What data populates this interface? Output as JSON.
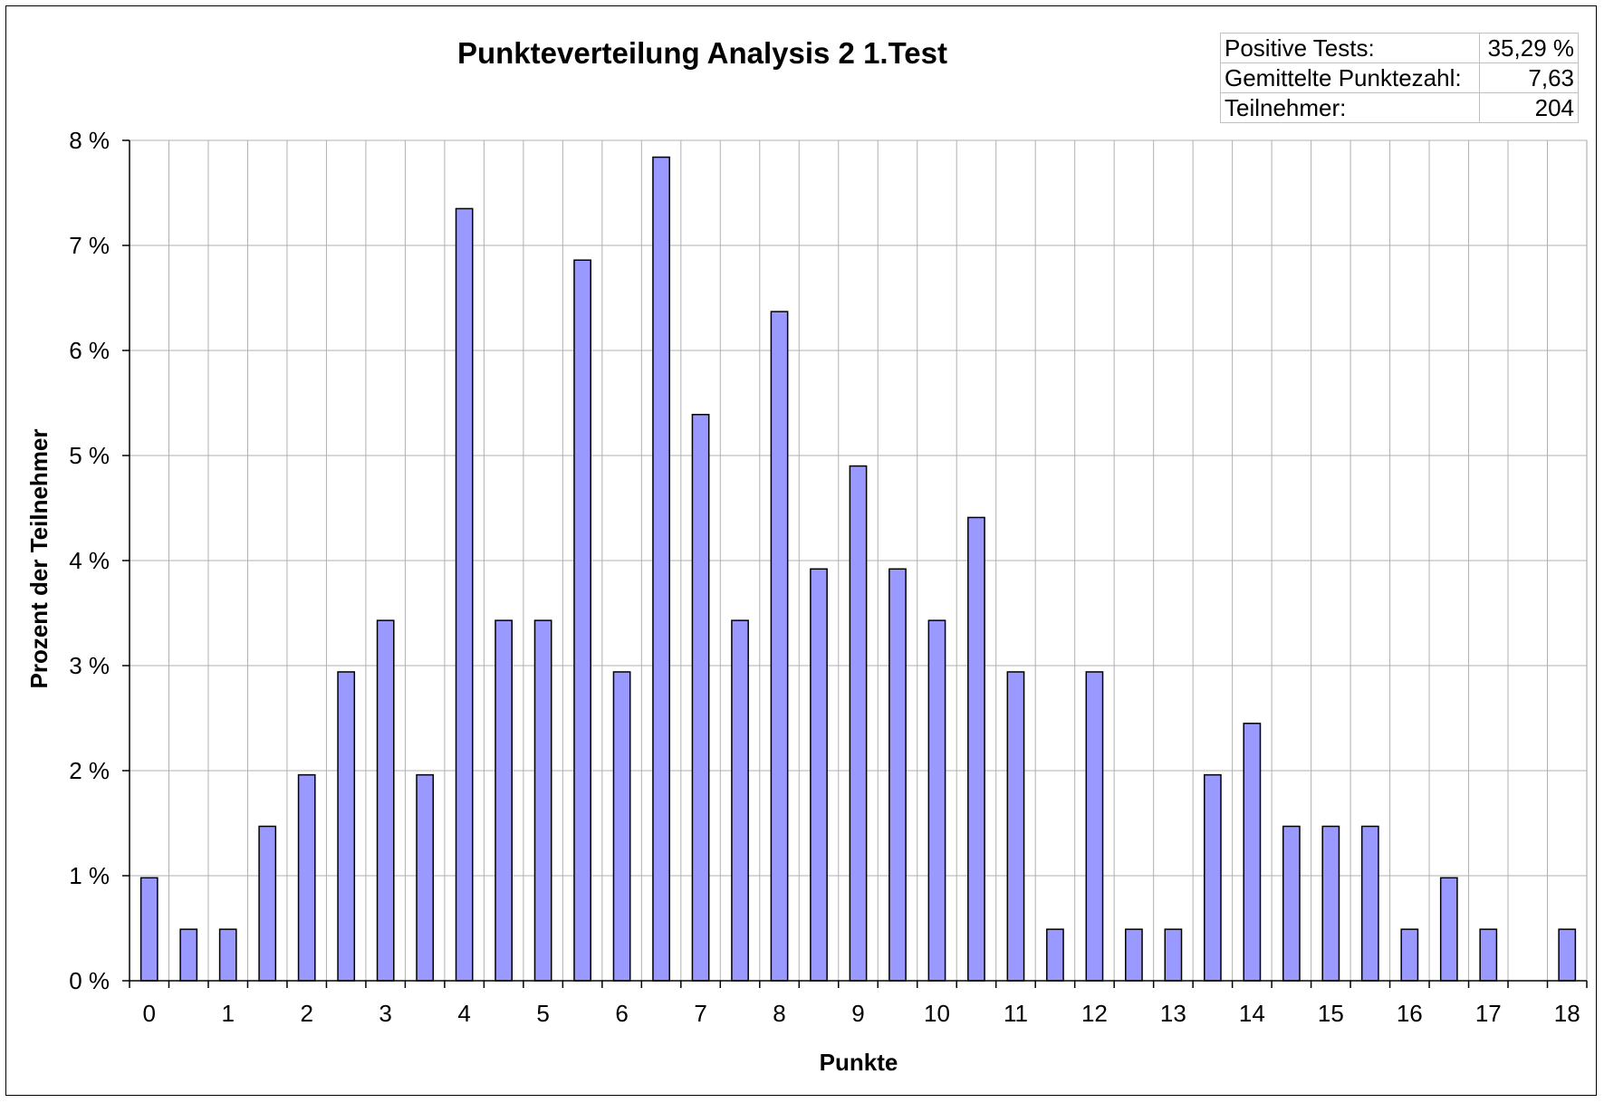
{
  "chart_data": {
    "type": "bar",
    "title": "Punkteverteilung Analysis 2 1.Test",
    "xlabel": "Punkte",
    "ylabel": "Prozent der Teilnehmer",
    "x_tick_labels": [
      "0",
      "1",
      "2",
      "3",
      "4",
      "5",
      "6",
      "7",
      "8",
      "9",
      "10",
      "11",
      "12",
      "13",
      "14",
      "15",
      "16",
      "17",
      "18"
    ],
    "y_tick_labels": [
      "0 %",
      "1 %",
      "2 %",
      "3 %",
      "4 %",
      "5 %",
      "6 %",
      "7 %",
      "8 %"
    ],
    "ylim": [
      0,
      8
    ],
    "xlim": [
      0,
      18
    ],
    "grid": true,
    "bar_color": "#9999ff",
    "series": [
      {
        "x": [
          0,
          0.5,
          1,
          1.5,
          2,
          2.5,
          3,
          3.5,
          4,
          4.5,
          5,
          5.5,
          6,
          6.5,
          7,
          7.5,
          8,
          8.5,
          9,
          9.5,
          10,
          10.5,
          11,
          11.5,
          12,
          12.5,
          13,
          13.5,
          14,
          14.5,
          15,
          15.5,
          16,
          16.5,
          17,
          17.5,
          18
        ],
        "values": [
          0.98,
          0.49,
          0.49,
          1.47,
          1.96,
          2.94,
          3.43,
          1.96,
          7.35,
          3.43,
          3.43,
          6.86,
          2.94,
          7.84,
          5.39,
          3.43,
          6.37,
          3.92,
          4.9,
          3.92,
          3.43,
          4.41,
          2.94,
          0.49,
          2.94,
          0.49,
          0.49,
          1.96,
          2.45,
          1.47,
          1.47,
          1.47,
          0.49,
          0.98,
          0.49,
          0,
          0.49
        ]
      }
    ]
  },
  "stats": [
    {
      "label": "Positive Tests:",
      "value": "35,29 %"
    },
    {
      "label": "Gemittelte Punktezahl:",
      "value": "7,63"
    },
    {
      "label": "Teilnehmer:",
      "value": "204"
    }
  ]
}
